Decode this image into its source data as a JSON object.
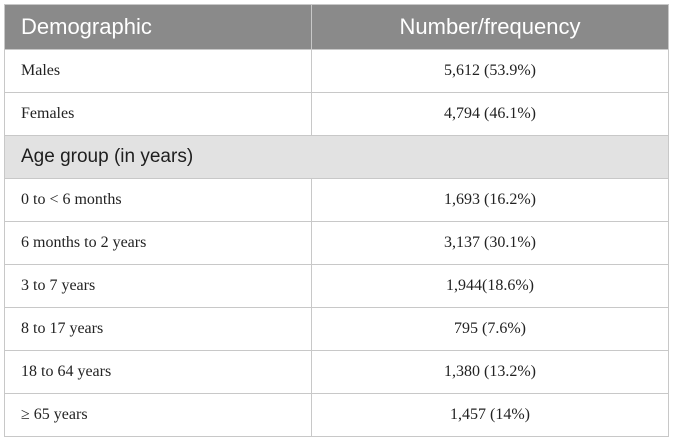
{
  "table": {
    "headers": [
      "Demographic",
      "Number/frequency"
    ],
    "rows": [
      {
        "label": "Males",
        "value": "5,612 (53.9%)"
      },
      {
        "label": "Females",
        "value": "4,794 (46.1%)"
      }
    ],
    "section_title": "Age group (in years)",
    "age_rows": [
      {
        "label": "0 to < 6 months",
        "value": "1,693 (16.2%)"
      },
      {
        "label": "6 months to 2 years",
        "value": "3,137 (30.1%)"
      },
      {
        "label": "3 to 7 years",
        "value": "1,944(18.6%)"
      },
      {
        "label": "8 to 17 years",
        "value": "795 (7.6%)"
      },
      {
        "label": "18 to 64 years",
        "value": "1,380 (13.2%)"
      },
      {
        "label": "≥ 65 years",
        "value": "1,457 (14%)"
      }
    ]
  }
}
